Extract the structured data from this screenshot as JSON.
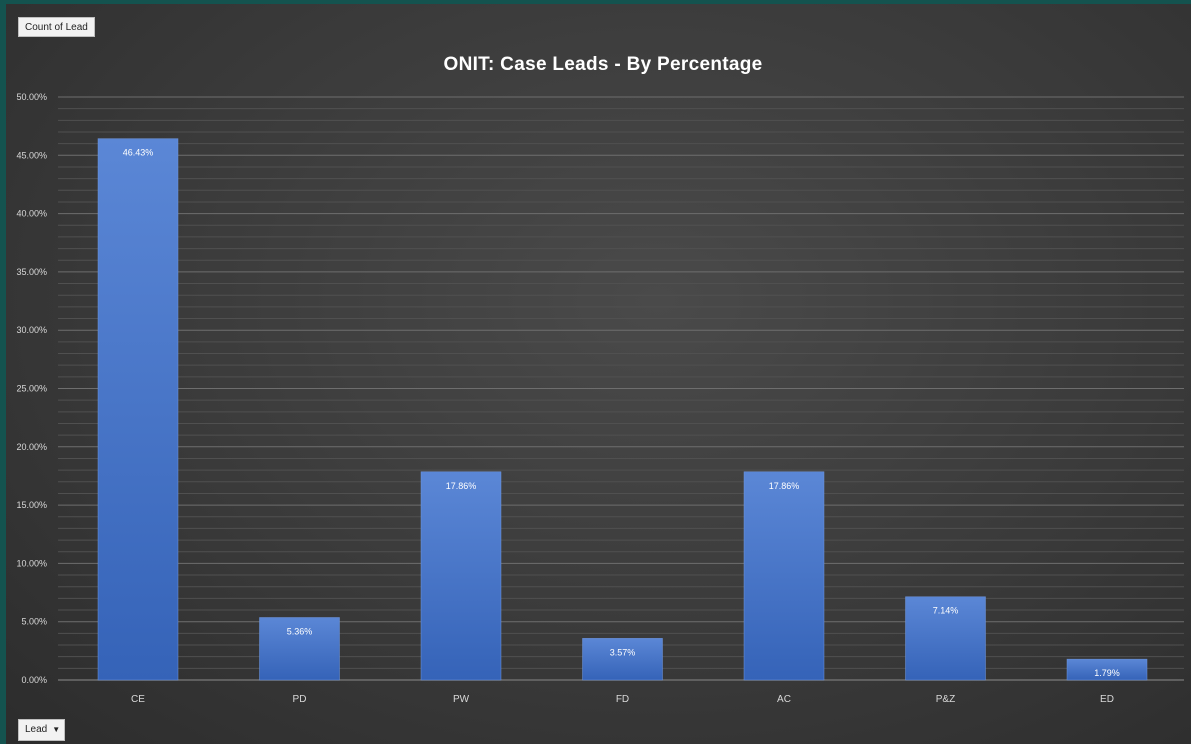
{
  "field_button": {
    "label": "Count of Lead"
  },
  "axis_button": {
    "label": "Lead"
  },
  "chart_data": {
    "type": "bar",
    "title": "ONIT: Case Leads - By Percentage",
    "categories": [
      "CE",
      "PD",
      "PW",
      "FD",
      "AC",
      "P&Z",
      "ED"
    ],
    "values": [
      46.43,
      5.36,
      17.86,
      3.57,
      17.86,
      7.14,
      1.79
    ],
    "data_labels": [
      "46.43%",
      "5.36%",
      "17.86%",
      "3.57%",
      "17.86%",
      "7.14%",
      "1.79%"
    ],
    "y_ticks": [
      "0.00%",
      "5.00%",
      "10.00%",
      "15.00%",
      "20.00%",
      "25.00%",
      "30.00%",
      "35.00%",
      "40.00%",
      "45.00%",
      "50.00%"
    ],
    "ylim": [
      0,
      50
    ],
    "grid": true,
    "legend": "none",
    "bar_color": "#4472c4"
  }
}
